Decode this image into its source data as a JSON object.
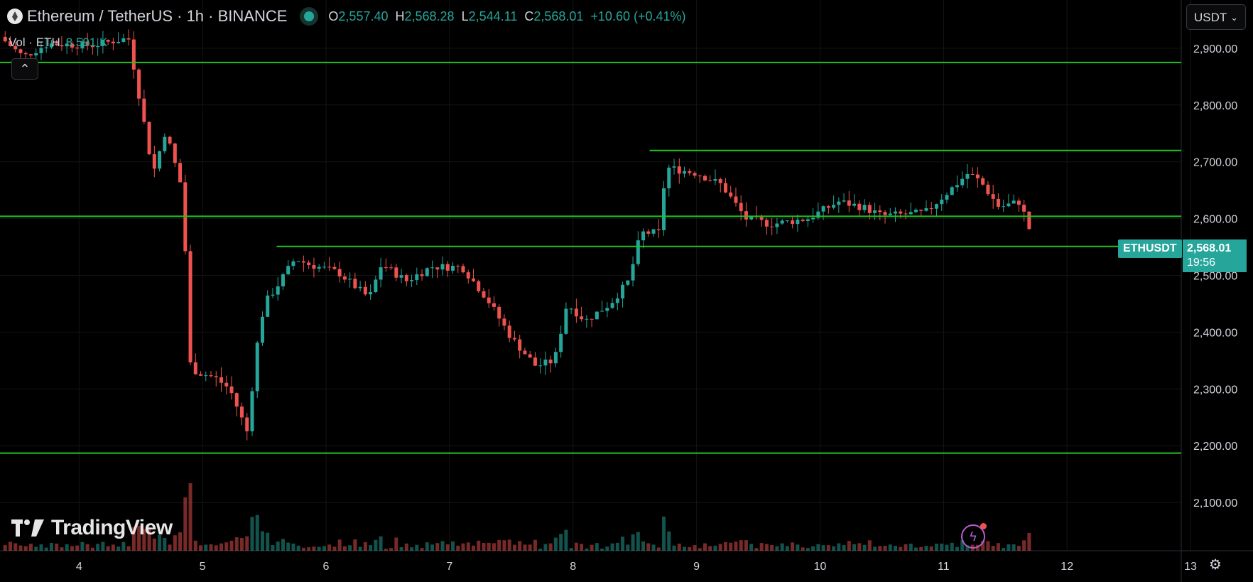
{
  "header": {
    "symbol_title": "Ethereum / TetherUS · 1h · BINANCE",
    "open_label": "O",
    "open": "2,557.40",
    "high_label": "H",
    "high": "2,568.28",
    "low_label": "L",
    "low": "2,544.11",
    "close_label": "C",
    "close": "2,568.01",
    "change": "+10.60 (+0.41%)",
    "volume_label": "Vol · ETH",
    "volume_value": "8.591 K",
    "collapse_icon": "chevron-up-icon"
  },
  "currency_selector": {
    "value": "USDT"
  },
  "brand": {
    "name": "TradingView"
  },
  "last_price": {
    "symbol": "ETHUSDT",
    "price": "2,568.01",
    "countdown": "19:56"
  },
  "colors": {
    "up": "#26a69a",
    "down": "#ef5350",
    "level_line": "#22c322",
    "background": "#000000",
    "text": "#d1d4dc"
  },
  "chart_data": {
    "type": "candlestick",
    "y_axis_ticks": [
      "2,900.00",
      "2,800.00",
      "2,700.00",
      "2,600.00",
      "2,500.00",
      "2,400.00",
      "2,300.00",
      "2,200.00",
      "2,100.00"
    ],
    "y_tick_values": [
      2900,
      2800,
      2700,
      2600,
      2500,
      2400,
      2300,
      2200,
      2100
    ],
    "ylim": [
      2015,
      2985
    ],
    "x_axis_ticks": [
      "4",
      "5",
      "6",
      "7",
      "8",
      "9",
      "10",
      "11",
      "12",
      "13"
    ],
    "x_tick_positions_day": [
      4,
      5,
      6,
      7,
      8,
      9,
      10,
      11,
      12,
      13
    ],
    "xlim_day": [
      3.36,
      13.5
    ],
    "last_candle_day": 11.72,
    "price_anchors": [
      [
        3.36,
        2920
      ],
      [
        3.55,
        2885
      ],
      [
        3.75,
        2908
      ],
      [
        4.1,
        2905
      ],
      [
        4.4,
        2918
      ],
      [
        4.45,
        2860
      ],
      [
        4.6,
        2680
      ],
      [
        4.7,
        2755
      ],
      [
        4.85,
        2640
      ],
      [
        4.88,
        2350
      ],
      [
        4.95,
        2330
      ],
      [
        5.1,
        2320
      ],
      [
        5.22,
        2300
      ],
      [
        5.37,
        2220
      ],
      [
        5.42,
        2350
      ],
      [
        5.5,
        2450
      ],
      [
        5.6,
        2480
      ],
      [
        5.75,
        2530
      ],
      [
        5.85,
        2520
      ],
      [
        6.1,
        2505
      ],
      [
        6.35,
        2460
      ],
      [
        6.45,
        2520
      ],
      [
        6.65,
        2490
      ],
      [
        6.85,
        2515
      ],
      [
        7.1,
        2515
      ],
      [
        7.3,
        2460
      ],
      [
        7.5,
        2390
      ],
      [
        7.7,
        2340
      ],
      [
        7.85,
        2350
      ],
      [
        7.95,
        2450
      ],
      [
        8.1,
        2420
      ],
      [
        8.3,
        2450
      ],
      [
        8.45,
        2490
      ],
      [
        8.55,
        2575
      ],
      [
        8.7,
        2575
      ],
      [
        8.75,
        2690
      ],
      [
        9.0,
        2680
      ],
      [
        9.2,
        2660
      ],
      [
        9.4,
        2600
      ],
      [
        9.6,
        2590
      ],
      [
        9.9,
        2600
      ],
      [
        10.15,
        2630
      ],
      [
        10.35,
        2620
      ],
      [
        10.5,
        2605
      ],
      [
        10.85,
        2610
      ],
      [
        11.05,
        2650
      ],
      [
        11.2,
        2680
      ],
      [
        11.3,
        2665
      ],
      [
        11.45,
        2620
      ],
      [
        11.62,
        2630
      ],
      [
        11.68,
        2590
      ],
      [
        11.72,
        2568
      ]
    ],
    "levels": [
      {
        "price": 2875,
        "start_day": 3.36,
        "end_day": 13.5
      },
      {
        "price": 2720,
        "start_day": 8.62,
        "end_day": 13.38
      },
      {
        "price": 2604,
        "start_day": 3.36,
        "end_day": 13.5
      },
      {
        "price": 2551,
        "start_day": 5.6,
        "end_day": 13.5
      },
      {
        "price": 2187,
        "start_day": 3.36,
        "end_day": 13.5
      }
    ],
    "grid": true,
    "volume_pane": true
  }
}
